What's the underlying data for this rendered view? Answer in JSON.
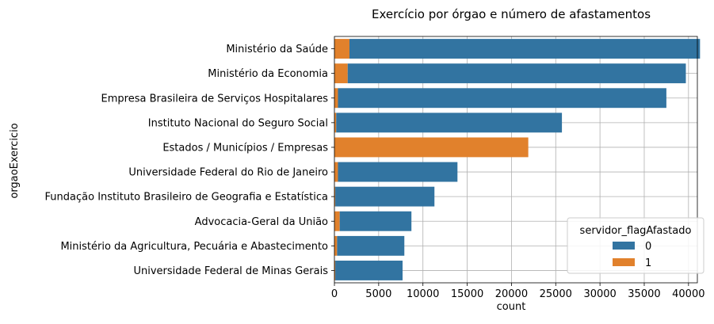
{
  "chart_data": {
    "type": "bar",
    "orientation": "horizontal",
    "stacked": true,
    "title": "Exercício por órgao e número de afastamentos",
    "xlabel": "count",
    "ylabel": "orgaoExercicio",
    "xlim": [
      0,
      41000
    ],
    "xticks": [
      0,
      5000,
      10000,
      15000,
      20000,
      25000,
      30000,
      35000,
      40000
    ],
    "xtick_labels": [
      "0",
      "5000",
      "10000",
      "15000",
      "20000",
      "25000",
      "30000",
      "35000",
      "40000"
    ],
    "grid": true,
    "legend_title": "servidor_flagAfastado",
    "legend_position": "bottom-right",
    "categories": [
      "Ministério da Saúde",
      "Ministério da Economia",
      "Empresa Brasileira de Serviços Hospitalares",
      "Instituto Nacional do Seguro Social",
      "Estados / Municípios / Empresas",
      "Universidade Federal do Rio de Janeiro",
      "Fundação Instituto Brasileiro de Geografia e Estatística",
      "Advocacia-Geral da União",
      "Ministério da Agricultura, Pecuária e Abastecimento",
      "Universidade Federal de Minas Gerais"
    ],
    "series": [
      {
        "name": "0",
        "color": "#3274a1",
        "values": [
          39600,
          38200,
          37100,
          25500,
          0,
          13500,
          11200,
          8100,
          7600,
          7600
        ]
      },
      {
        "name": "1",
        "color": "#e1812c",
        "values": [
          1700,
          1500,
          400,
          200,
          21900,
          400,
          100,
          600,
          300,
          100
        ]
      }
    ]
  }
}
